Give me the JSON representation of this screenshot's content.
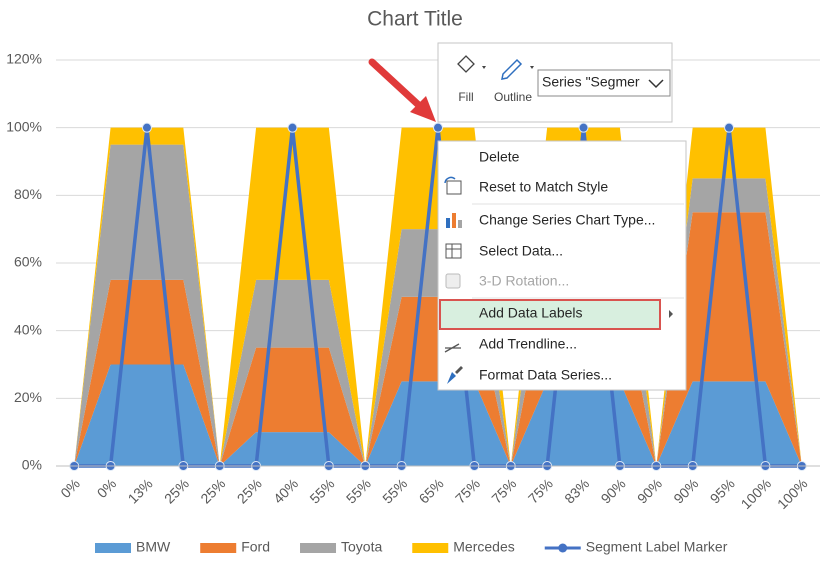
{
  "chart_data": {
    "type": "area",
    "stacked": true,
    "title": "Chart Title",
    "categories": [
      "0%",
      "0%",
      "13%",
      "25%",
      "25%",
      "25%",
      "40%",
      "55%",
      "55%",
      "55%",
      "65%",
      "75%",
      "75%",
      "75%",
      "83%",
      "90%",
      "90%",
      "90%",
      "95%",
      "100%",
      "100%"
    ],
    "ylim": [
      0,
      120
    ],
    "yticks": [
      {
        "value": 0,
        "label": "0%"
      },
      {
        "value": 20,
        "label": "20%"
      },
      {
        "value": 40,
        "label": "40%"
      },
      {
        "value": 60,
        "label": "60%"
      },
      {
        "value": 80,
        "label": "80%"
      },
      {
        "value": 100,
        "label": "100%"
      },
      {
        "value": 120,
        "label": "120%"
      }
    ],
    "grid": true,
    "legend": "bottom",
    "series": [
      {
        "name": "BMW",
        "color": "#5b9bd5",
        "type": "area",
        "values": [
          0,
          30,
          30,
          30,
          0,
          10,
          10,
          10,
          0,
          25,
          25,
          25,
          0,
          25,
          25,
          25,
          0,
          25,
          25,
          25,
          0
        ]
      },
      {
        "name": "Ford",
        "color": "#ed7d31",
        "type": "area",
        "values": [
          0,
          25,
          25,
          25,
          0,
          25,
          25,
          25,
          0,
          25,
          25,
          25,
          0,
          30,
          30,
          30,
          0,
          50,
          50,
          50,
          0
        ]
      },
      {
        "name": "Toyota",
        "color": "#a5a5a5",
        "type": "area",
        "values": [
          0,
          40,
          40,
          40,
          0,
          20,
          20,
          20,
          0,
          20,
          20,
          20,
          0,
          25,
          25,
          25,
          0,
          10,
          10,
          10,
          0
        ]
      },
      {
        "name": "Mercedes",
        "color": "#ffc000",
        "type": "area",
        "values": [
          0,
          5,
          5,
          5,
          0,
          45,
          45,
          45,
          0,
          30,
          30,
          30,
          0,
          20,
          20,
          20,
          0,
          15,
          15,
          15,
          0
        ]
      },
      {
        "name": "Segment Label Marker",
        "color": "#4472c4",
        "type": "line",
        "values": [
          0,
          0,
          100,
          0,
          0,
          0,
          100,
          0,
          0,
          0,
          100,
          0,
          0,
          0,
          100,
          0,
          0,
          0,
          100,
          0,
          0
        ]
      }
    ]
  },
  "mini_toolbar": {
    "fill": "Fill",
    "outline": "Outline",
    "series_selector": "Series \"Segmer"
  },
  "context_menu": {
    "items": [
      "Delete",
      "Reset to Match Style",
      "Change Series Chart Type...",
      "Select Data...",
      "3-D Rotation...",
      "Add Data Labels",
      "Add Trendline...",
      "Format Data Series..."
    ],
    "disabled_item": 4,
    "highlighted_item": 5
  }
}
